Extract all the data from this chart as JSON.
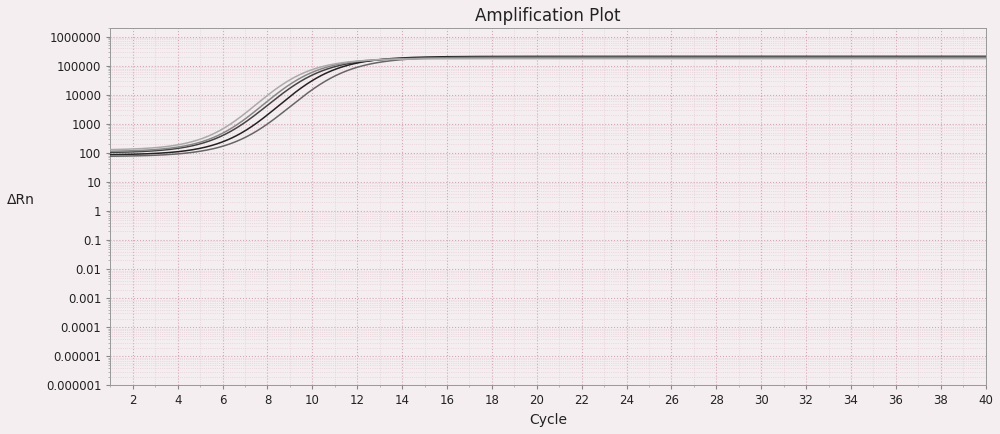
{
  "title": "Amplification Plot",
  "xlabel": "Cycle",
  "ylabel": "ΔRn",
  "xlim": [
    1,
    40
  ],
  "ylim_log": [
    1e-06,
    2000000.0
  ],
  "xticks": [
    2,
    4,
    6,
    8,
    10,
    12,
    14,
    16,
    18,
    20,
    22,
    24,
    26,
    28,
    30,
    32,
    34,
    36,
    38,
    40
  ],
  "yticks": [
    1e-06,
    1e-05,
    0.0001,
    0.001,
    0.01,
    0.1,
    1,
    10,
    100,
    1000,
    10000,
    100000,
    1000000
  ],
  "ytick_labels": [
    "0.000001",
    "0.00001",
    "0.0001",
    "0.001",
    "0.01",
    "0.1",
    "1",
    "10",
    "100",
    "1000",
    "10000",
    "100000",
    "1000000"
  ],
  "background_color": "#f5eef0",
  "grid_color_major": "#d4a8b8",
  "grid_color_minor": "#e2c8d0",
  "line_colors": [
    "#444444",
    "#222222",
    "#666666",
    "#888888",
    "#aaaaaa"
  ],
  "num_curves": 5,
  "plateau_value": [
    190000,
    210000,
    200000,
    185000,
    175000
  ],
  "start_value": [
    100,
    85,
    75,
    110,
    125
  ],
  "inflection_cycle": [
    8.0,
    8.5,
    9.0,
    7.8,
    7.5
  ],
  "steepness": [
    0.75,
    0.75,
    0.72,
    0.78,
    0.8
  ],
  "title_fontsize": 12,
  "axis_label_fontsize": 10,
  "tick_fontsize": 8.5
}
